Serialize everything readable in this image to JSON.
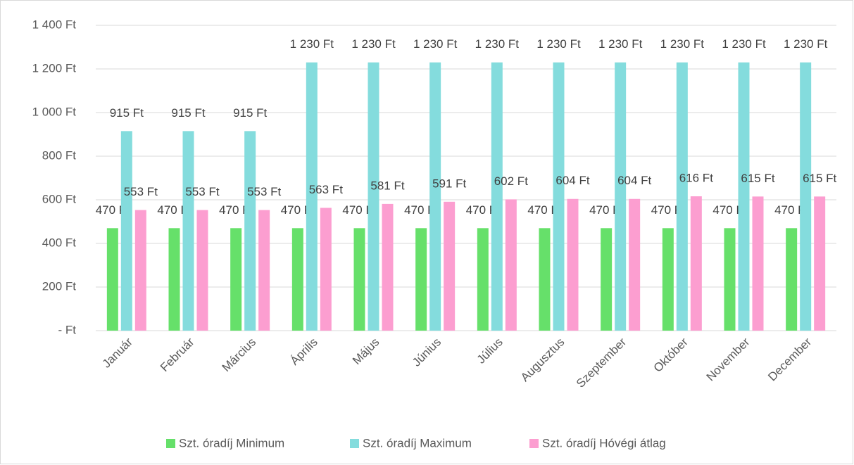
{
  "chart_data": {
    "type": "bar",
    "categories": [
      "Január",
      "Február",
      "Március",
      "Április",
      "Május",
      "Június",
      "Július",
      "Augusztus",
      "Szeptember",
      "Október",
      "November",
      "December"
    ],
    "series": [
      {
        "name": "Szt. óradíj Minimum",
        "color": "#66e06a",
        "values": [
          470,
          470,
          470,
          470,
          470,
          470,
          470,
          470,
          470,
          470,
          470,
          470
        ],
        "value_labels": [
          "470 Ft",
          "470 Ft",
          "470 Ft",
          "470 Ft",
          "470 Ft",
          "470 Ft",
          "470 Ft",
          "470 Ft",
          "470 Ft",
          "470 Ft",
          "470 Ft",
          "470 Ft"
        ]
      },
      {
        "name": "Szt. óradíj Maximum",
        "color": "#84dcdd",
        "values": [
          915,
          915,
          915,
          1230,
          1230,
          1230,
          1230,
          1230,
          1230,
          1230,
          1230,
          1230
        ],
        "value_labels": [
          "915 Ft",
          "915 Ft",
          "915 Ft",
          "1 230 Ft",
          "1 230 Ft",
          "1 230 Ft",
          "1 230 Ft",
          "1 230 Ft",
          "1 230 Ft",
          "1 230 Ft",
          "1 230 Ft",
          "1 230 Ft"
        ]
      },
      {
        "name": "Szt. óradíj Hóvégi átlag",
        "color": "#fc9ed0",
        "values": [
          553,
          553,
          553,
          563,
          581,
          591,
          602,
          604,
          604,
          616,
          615,
          615
        ],
        "value_labels": [
          "553 Ft",
          "553 Ft",
          "553 Ft",
          "563 Ft",
          "581 Ft",
          "591 Ft",
          "602 Ft",
          "604 Ft",
          "604 Ft",
          "616 Ft",
          "615 Ft",
          "615 Ft"
        ]
      }
    ],
    "ylim": [
      0,
      1400
    ],
    "yticks": [
      {
        "value": 0,
        "label": "-   Ft"
      },
      {
        "value": 200,
        "label": "200 Ft"
      },
      {
        "value": 400,
        "label": "400 Ft"
      },
      {
        "value": 600,
        "label": "600 Ft"
      },
      {
        "value": 800,
        "label": "800 Ft"
      },
      {
        "value": 1000,
        "label": "1 000 Ft"
      },
      {
        "value": 1200,
        "label": "1 200 Ft"
      },
      {
        "value": 1400,
        "label": "1 400 Ft"
      }
    ],
    "grid": true,
    "legend": "bottom"
  }
}
